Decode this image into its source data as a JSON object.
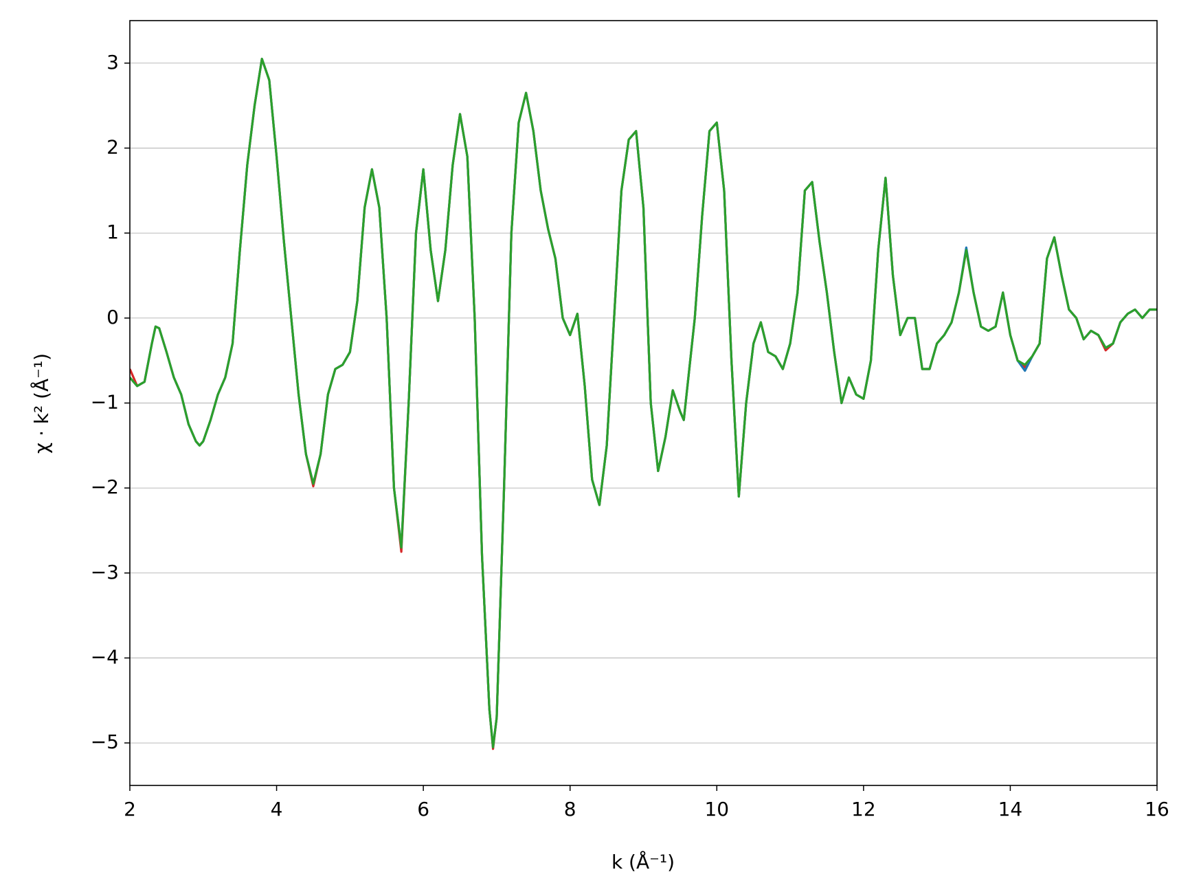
{
  "chart_data": {
    "type": "line",
    "xlabel": "k (Å⁻¹)",
    "ylabel": "χ · k² (Å⁻¹)",
    "xlim": [
      2,
      16
    ],
    "xticks": [
      2,
      4,
      6,
      8,
      10,
      12,
      14,
      16
    ],
    "ylim": [
      -5.5,
      3.5
    ],
    "yticks": [
      {
        "value": -5,
        "label": "−5"
      },
      {
        "value": -4,
        "label": "−4"
      },
      {
        "value": -3,
        "label": "−3"
      },
      {
        "value": -2,
        "label": "−2"
      },
      {
        "value": -1,
        "label": "−1"
      },
      0,
      1,
      2,
      3
    ],
    "grid": "y",
    "x": [
      2.0,
      2.1,
      2.2,
      2.3,
      2.35,
      2.4,
      2.5,
      2.6,
      2.7,
      2.8,
      2.9,
      2.95,
      3.0,
      3.1,
      3.2,
      3.3,
      3.4,
      3.5,
      3.6,
      3.7,
      3.8,
      3.9,
      4.0,
      4.1,
      4.2,
      4.3,
      4.4,
      4.5,
      4.6,
      4.7,
      4.8,
      4.9,
      5.0,
      5.1,
      5.2,
      5.3,
      5.4,
      5.5,
      5.6,
      5.7,
      5.8,
      5.9,
      6.0,
      6.1,
      6.2,
      6.3,
      6.4,
      6.5,
      6.6,
      6.7,
      6.8,
      6.9,
      6.95,
      7.0,
      7.1,
      7.2,
      7.3,
      7.4,
      7.5,
      7.6,
      7.7,
      7.8,
      7.9,
      8.0,
      8.1,
      8.2,
      8.3,
      8.4,
      8.5,
      8.6,
      8.7,
      8.8,
      8.9,
      9.0,
      9.1,
      9.2,
      9.3,
      9.4,
      9.5,
      9.55,
      9.6,
      9.7,
      9.8,
      9.9,
      10.0,
      10.1,
      10.2,
      10.3,
      10.4,
      10.5,
      10.6,
      10.7,
      10.8,
      10.9,
      11.0,
      11.1,
      11.2,
      11.3,
      11.4,
      11.5,
      11.6,
      11.7,
      11.8,
      11.9,
      12.0,
      12.1,
      12.2,
      12.3,
      12.4,
      12.5,
      12.6,
      12.7,
      12.8,
      12.9,
      13.0,
      13.1,
      13.2,
      13.3,
      13.4,
      13.5,
      13.6,
      13.7,
      13.8,
      13.9,
      14.0,
      14.1,
      14.2,
      14.3,
      14.4,
      14.5,
      14.6,
      14.7,
      14.8,
      14.9,
      15.0,
      15.1,
      15.2,
      15.3,
      15.4,
      15.5,
      15.6,
      15.7,
      15.8,
      15.9,
      16.0
    ],
    "series": [
      {
        "color": "#d62728",
        "values": [
          -0.6,
          -0.8,
          -0.75,
          -0.3,
          -0.1,
          -0.12,
          -0.4,
          -0.7,
          -0.9,
          -1.25,
          -1.45,
          -1.5,
          -1.45,
          -1.2,
          -0.9,
          -0.7,
          -0.3,
          0.8,
          1.8,
          2.5,
          3.05,
          2.8,
          1.9,
          0.9,
          0.0,
          -0.9,
          -1.6,
          -1.98,
          -1.6,
          -0.9,
          -0.6,
          -0.55,
          -0.4,
          0.2,
          1.3,
          1.75,
          1.3,
          0.0,
          -2.0,
          -2.75,
          -1.0,
          1.0,
          1.75,
          0.8,
          0.2,
          0.8,
          1.8,
          2.4,
          1.9,
          0.0,
          -2.8,
          -4.6,
          -5.07,
          -4.7,
          -2.0,
          1.0,
          2.3,
          2.65,
          2.2,
          1.5,
          1.05,
          0.7,
          0.0,
          -0.2,
          0.05,
          -0.8,
          -1.9,
          -2.2,
          -1.5,
          0.0,
          1.5,
          2.1,
          2.2,
          1.3,
          -1.0,
          -1.8,
          -1.4,
          -0.85,
          -1.1,
          -1.2,
          -0.8,
          0.0,
          1.2,
          2.2,
          2.3,
          1.5,
          -0.5,
          -2.1,
          -1.0,
          -0.3,
          -0.05,
          -0.4,
          -0.45,
          -0.6,
          -0.3,
          0.3,
          1.5,
          1.6,
          0.9,
          0.3,
          -0.4,
          -1.0,
          -0.7,
          -0.9,
          -0.95,
          -0.5,
          0.8,
          1.65,
          0.5,
          -0.2,
          0.0,
          0.0,
          -0.6,
          -0.6,
          -0.3,
          -0.2,
          -0.05,
          0.3,
          0.8,
          0.3,
          -0.1,
          -0.15,
          -0.1,
          0.3,
          -0.2,
          -0.5,
          -0.58,
          -0.45,
          -0.3,
          0.7,
          0.95,
          0.5,
          0.1,
          0.0,
          -0.25,
          -0.15,
          -0.2,
          -0.38,
          -0.3,
          -0.05,
          0.05,
          0.1,
          0.0,
          0.1,
          0.1
        ]
      },
      {
        "color": "#1f77b4",
        "values": [
          -0.7,
          -0.8,
          -0.75,
          -0.3,
          -0.1,
          -0.12,
          -0.4,
          -0.7,
          -0.9,
          -1.25,
          -1.45,
          -1.5,
          -1.45,
          -1.2,
          -0.9,
          -0.7,
          -0.3,
          0.8,
          1.8,
          2.5,
          3.05,
          2.8,
          1.9,
          0.9,
          0.0,
          -0.9,
          -1.6,
          -1.95,
          -1.6,
          -0.9,
          -0.6,
          -0.55,
          -0.4,
          0.2,
          1.3,
          1.75,
          1.3,
          0.0,
          -2.0,
          -2.7,
          -1.0,
          1.0,
          1.75,
          0.8,
          0.2,
          0.8,
          1.8,
          2.4,
          1.9,
          0.0,
          -2.8,
          -4.6,
          -5.05,
          -4.7,
          -2.0,
          1.0,
          2.3,
          2.65,
          2.2,
          1.5,
          1.05,
          0.7,
          0.0,
          -0.2,
          0.05,
          -0.8,
          -1.9,
          -2.2,
          -1.5,
          0.0,
          1.5,
          2.1,
          2.2,
          1.3,
          -1.0,
          -1.8,
          -1.4,
          -0.85,
          -1.1,
          -1.2,
          -0.8,
          0.0,
          1.2,
          2.2,
          2.3,
          1.5,
          -0.5,
          -2.1,
          -1.0,
          -0.3,
          -0.05,
          -0.4,
          -0.45,
          -0.6,
          -0.3,
          0.3,
          1.5,
          1.6,
          0.9,
          0.3,
          -0.4,
          -1.0,
          -0.7,
          -0.9,
          -0.95,
          -0.5,
          0.8,
          1.65,
          0.5,
          -0.2,
          0.0,
          0.0,
          -0.6,
          -0.6,
          -0.3,
          -0.2,
          -0.05,
          0.3,
          0.83,
          0.3,
          -0.1,
          -0.15,
          -0.1,
          0.3,
          -0.2,
          -0.5,
          -0.62,
          -0.45,
          -0.3,
          0.7,
          0.95,
          0.5,
          0.1,
          0.0,
          -0.25,
          -0.15,
          -0.2,
          -0.35,
          -0.3,
          -0.05,
          0.05,
          0.1,
          0.0,
          0.1,
          0.1
        ]
      },
      {
        "color": "#2ca02c",
        "values": [
          -0.7,
          -0.8,
          -0.75,
          -0.3,
          -0.1,
          -0.12,
          -0.4,
          -0.7,
          -0.9,
          -1.25,
          -1.45,
          -1.5,
          -1.45,
          -1.2,
          -0.9,
          -0.7,
          -0.3,
          0.8,
          1.8,
          2.5,
          3.05,
          2.8,
          1.9,
          0.9,
          0.0,
          -0.9,
          -1.6,
          -1.95,
          -1.6,
          -0.9,
          -0.6,
          -0.55,
          -0.4,
          0.2,
          1.3,
          1.75,
          1.3,
          0.0,
          -2.0,
          -2.7,
          -1.0,
          1.0,
          1.75,
          0.8,
          0.2,
          0.8,
          1.8,
          2.4,
          1.9,
          0.0,
          -2.8,
          -4.6,
          -5.05,
          -4.7,
          -2.0,
          1.0,
          2.3,
          2.65,
          2.2,
          1.5,
          1.05,
          0.7,
          0.0,
          -0.2,
          0.05,
          -0.8,
          -1.9,
          -2.2,
          -1.5,
          0.0,
          1.5,
          2.1,
          2.2,
          1.3,
          -1.0,
          -1.8,
          -1.4,
          -0.85,
          -1.1,
          -1.2,
          -0.8,
          0.0,
          1.2,
          2.2,
          2.3,
          1.5,
          -0.5,
          -2.1,
          -1.0,
          -0.3,
          -0.05,
          -0.4,
          -0.45,
          -0.6,
          -0.3,
          0.3,
          1.5,
          1.6,
          0.9,
          0.3,
          -0.4,
          -1.0,
          -0.7,
          -0.9,
          -0.95,
          -0.5,
          0.8,
          1.65,
          0.5,
          -0.2,
          0.0,
          0.0,
          -0.6,
          -0.6,
          -0.3,
          -0.2,
          -0.05,
          0.3,
          0.8,
          0.3,
          -0.1,
          -0.15,
          -0.1,
          0.3,
          -0.2,
          -0.5,
          -0.55,
          -0.45,
          -0.3,
          0.7,
          0.95,
          0.5,
          0.1,
          0.0,
          -0.25,
          -0.15,
          -0.2,
          -0.35,
          -0.3,
          -0.05,
          0.05,
          0.1,
          0.0,
          0.1,
          0.1
        ]
      }
    ]
  }
}
